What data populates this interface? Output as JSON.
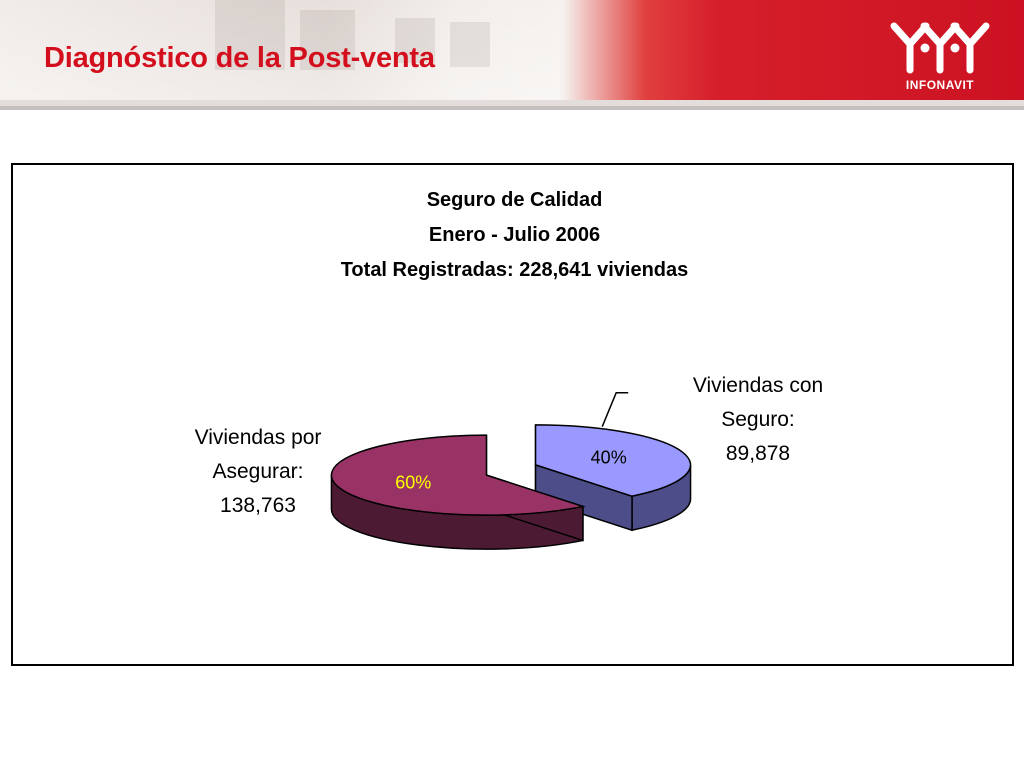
{
  "header": {
    "title": "Diagnóstico de la Post-venta",
    "logo_text": "INFONAVIT",
    "logo_icon": "infonavit-houses-logo",
    "accent_color": "#d40f1d"
  },
  "chart_data": {
    "type": "pie",
    "style": "3d-exploded",
    "title_lines": [
      "Seguro de Calidad",
      "Enero - Julio 2006",
      "Total Registradas: 228,641 viviendas"
    ],
    "total": 228641,
    "slices": [
      {
        "label_lines": [
          "Viviendas con",
          "Seguro:",
          "89,878"
        ],
        "value": 89878,
        "percent_label": "40%",
        "color": "#9999ff",
        "side_color": "#4d4d8a",
        "percent_color": "#000000"
      },
      {
        "label_lines": [
          "Viviendas por",
          "Asegurar:",
          "138,763"
        ],
        "value": 138763,
        "percent_label": "60%",
        "color": "#993366",
        "side_color": "#4d1a33",
        "percent_color": "#ffff00"
      }
    ]
  }
}
